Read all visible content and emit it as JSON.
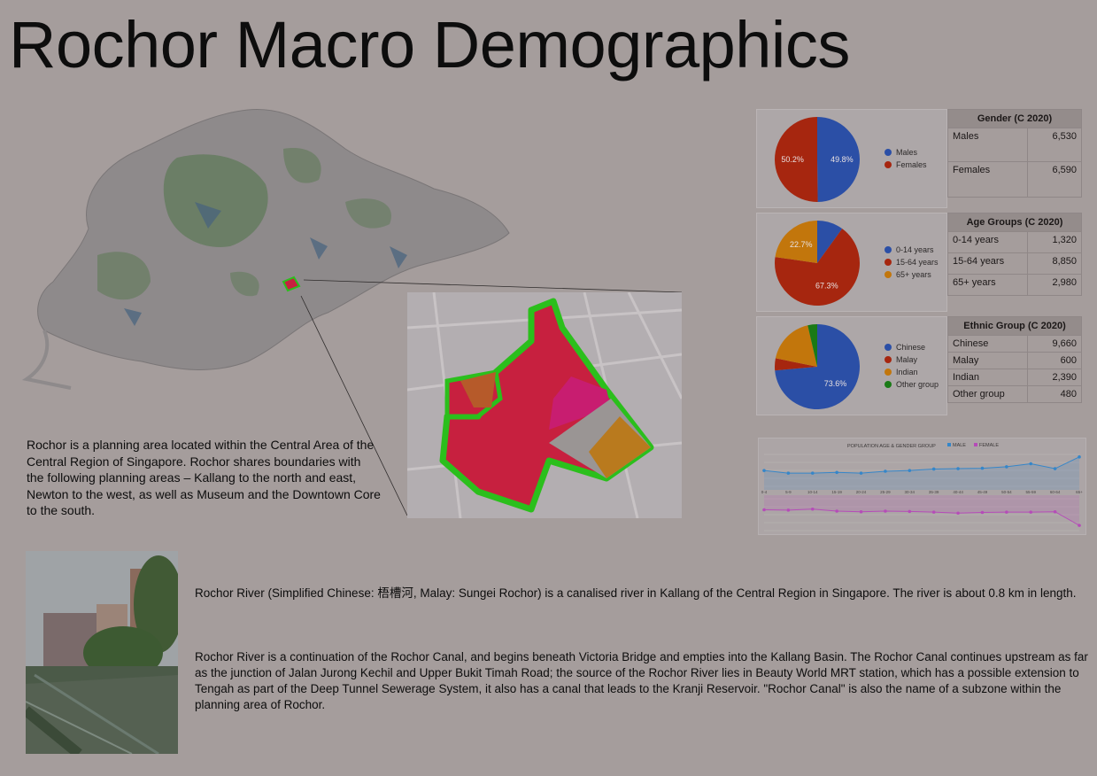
{
  "page": {
    "title": "Rochor Macro Demographics",
    "intro": "Rochor is a planning area located within the Central Area of the Central Region of Singapore. Rochor shares boundaries with the following planning areas – Kallang to the north and east, Newton to the west, as well as Museum and the Downtown Core to the south.",
    "river_p1": "Rochor River (Simplified Chinese: 梧槽河, Malay: Sungei Rochor) is a canalised river in Kallang of the Central Region in Singapore. The river is about 0.8 km in length.",
    "river_p2": "Rochor River is a continuation of the Rochor Canal, and begins beneath Victoria Bridge and empties into the Kallang Basin. The Rochor Canal continues upstream as far as the junction of Jalan Jurong Kechil and Upper Bukit Timah Road; the source of the Rochor River lies in Beauty World MRT station, which has a possible extension to Tengah as part of the Deep Tunnel Sewerage System, it also has a canal that leads to the Kranji Reservoir. \"Rochor Canal\" is also the name of a subzone within the planning area of Rochor."
  },
  "colors": {
    "blue": "#2b4fa6",
    "red": "#a6260f",
    "orange": "#c2760c",
    "green": "#1a7a16",
    "male_line": "#3586c9",
    "female_line": "#b54cb8",
    "region_red": "#c7203f",
    "region_pink": "#c81d70",
    "region_orange": "#b97a1e",
    "region_border": "#2bbf1c"
  },
  "chart_data": [
    {
      "type": "pie",
      "series": [
        {
          "name": "Males",
          "value": 49.8,
          "label": "49.8%"
        },
        {
          "name": "Females",
          "value": 50.2,
          "label": "50.2%"
        }
      ]
    },
    {
      "type": "table",
      "title": "Gender (C 2020)",
      "rows": [
        [
          "Males",
          "6,530"
        ],
        [
          "Females",
          "6,590"
        ]
      ]
    },
    {
      "type": "pie",
      "series": [
        {
          "name": "0-14 years",
          "value": 10.0,
          "label": ""
        },
        {
          "name": "15-64 years",
          "value": 67.3,
          "label": "67.3%"
        },
        {
          "name": "65+ years",
          "value": 22.7,
          "label": "22.7%"
        }
      ]
    },
    {
      "type": "table",
      "title": "Age Groups (C 2020)",
      "rows": [
        [
          "0-14 years",
          "1,320"
        ],
        [
          "15-64 years",
          "8,850"
        ],
        [
          "65+ years",
          "2,980"
        ]
      ]
    },
    {
      "type": "pie",
      "series": [
        {
          "name": "Chinese",
          "value": 73.6,
          "label": "73.6%"
        },
        {
          "name": "Malay",
          "value": 4.6,
          "label": ""
        },
        {
          "name": "Indian",
          "value": 18.2,
          "label": ""
        },
        {
          "name": "Other group",
          "value": 3.6,
          "label": ""
        }
      ]
    },
    {
      "type": "table",
      "title": "Ethnic Group (C 2020)",
      "rows": [
        [
          "Chinese",
          "9,660"
        ],
        [
          "Malay",
          "600"
        ],
        [
          "Indian",
          "2,390"
        ],
        [
          "Other group",
          "480"
        ]
      ]
    },
    {
      "type": "line",
      "title": "POPULATION AGE & GENDER GROUP",
      "categories": [
        "0-4",
        "5-9",
        "10-14",
        "15-19",
        "20-24",
        "25-29",
        "30-34",
        "35-39",
        "40-44",
        "45-49",
        "50-54",
        "55-59",
        "60-64",
        "65+"
      ],
      "series": [
        {
          "name": "MALE",
          "values": [
            420,
            350,
            350,
            370,
            350,
            400,
            420,
            460,
            470,
            480,
            520,
            600,
            470,
            780
          ]
        },
        {
          "name": "FEMALE",
          "values": [
            520,
            510,
            540,
            480,
            460,
            480,
            470,
            450,
            420,
            440,
            450,
            450,
            460,
            50
          ]
        }
      ]
    }
  ]
}
